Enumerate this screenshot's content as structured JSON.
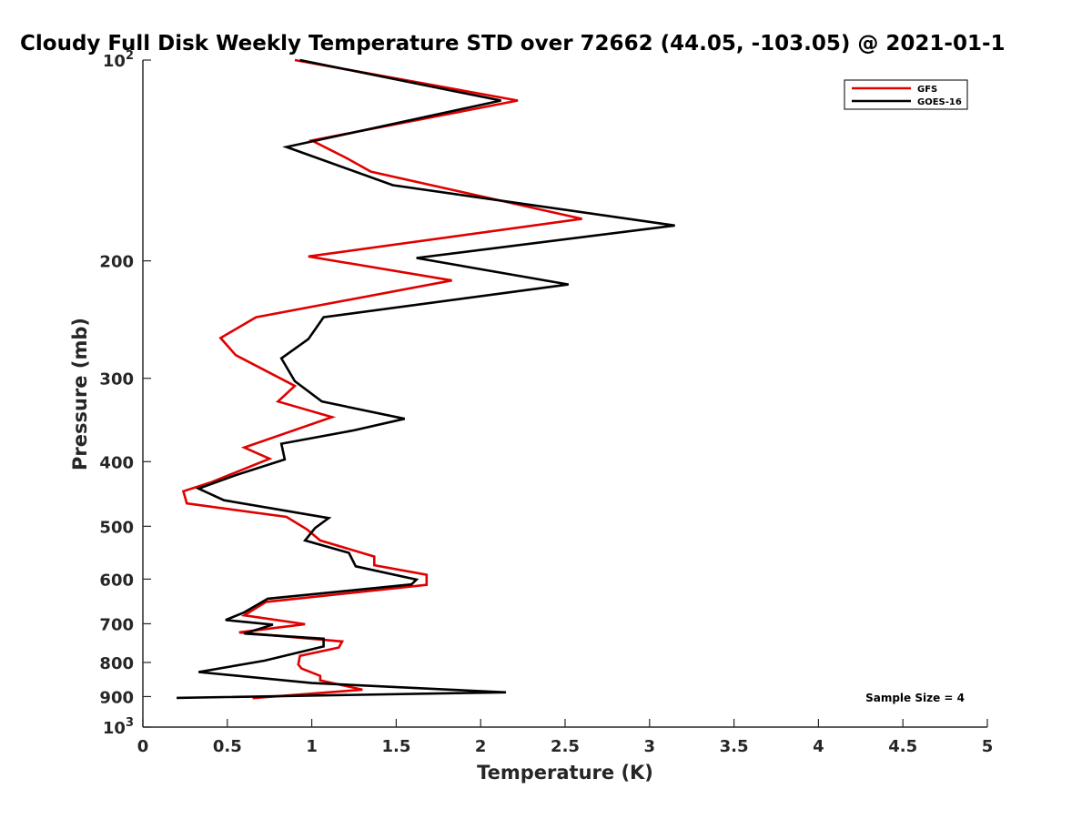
{
  "chart_data": {
    "type": "line",
    "title": "Cloudy Full Disk Weekly Temperature STD over 72662 (44.05, -103.05) @ 2021-01-1",
    "xlabel": "Temperature (K)",
    "ylabel": "Pressure (mb)",
    "xlim": [
      0,
      5
    ],
    "ylim": [
      100,
      1000
    ],
    "y_scale": "log",
    "y_reversed": true,
    "x_ticks": [
      {
        "value": 0,
        "label": "0"
      },
      {
        "value": 0.5,
        "label": "0.5"
      },
      {
        "value": 1,
        "label": "1"
      },
      {
        "value": 1.5,
        "label": "1.5"
      },
      {
        "value": 2,
        "label": "2"
      },
      {
        "value": 2.5,
        "label": "2.5"
      },
      {
        "value": 3,
        "label": "3"
      },
      {
        "value": 3.5,
        "label": "3.5"
      },
      {
        "value": 4,
        "label": "4"
      },
      {
        "value": 4.5,
        "label": "4.5"
      },
      {
        "value": 5,
        "label": "5"
      }
    ],
    "y_ticks": [
      {
        "value": 100,
        "base": "10",
        "exp": "2"
      },
      {
        "value": 200,
        "label": "200"
      },
      {
        "value": 300,
        "label": "300"
      },
      {
        "value": 400,
        "label": "400"
      },
      {
        "value": 500,
        "label": "500"
      },
      {
        "value": 600,
        "label": "600"
      },
      {
        "value": 700,
        "label": "700"
      },
      {
        "value": 800,
        "label": "800"
      },
      {
        "value": 900,
        "label": "900"
      },
      {
        "value": 1000,
        "base": "10",
        "exp": "3"
      }
    ],
    "grid": false,
    "legend_position": "top-right",
    "annotation": "Sample Size = 4",
    "series": [
      {
        "name": "GFS",
        "color": "#e00000",
        "points": [
          [
            0.9,
            100
          ],
          [
            2.22,
            115
          ],
          [
            1.0,
            132
          ],
          [
            1.2,
            140
          ],
          [
            1.35,
            147
          ],
          [
            2.6,
            173
          ],
          [
            0.98,
            197
          ],
          [
            1.83,
            214
          ],
          [
            0.67,
            243
          ],
          [
            0.46,
            261
          ],
          [
            0.55,
            277
          ],
          [
            0.9,
            308
          ],
          [
            0.8,
            325
          ],
          [
            1.12,
            343
          ],
          [
            0.6,
            381
          ],
          [
            0.75,
            396
          ],
          [
            0.4,
            430
          ],
          [
            0.24,
            443
          ],
          [
            0.26,
            462
          ],
          [
            0.85,
            484
          ],
          [
            0.97,
            505
          ],
          [
            1.05,
            525
          ],
          [
            1.37,
            555
          ],
          [
            1.37,
            572
          ],
          [
            1.68,
            591
          ],
          [
            1.68,
            612
          ],
          [
            0.73,
            649
          ],
          [
            0.6,
            680
          ],
          [
            0.96,
            701
          ],
          [
            0.57,
            721
          ],
          [
            1.18,
            744
          ],
          [
            1.16,
            760
          ],
          [
            0.93,
            782
          ],
          [
            0.92,
            806
          ],
          [
            0.94,
            817
          ],
          [
            1.05,
            838
          ],
          [
            1.05,
            851
          ],
          [
            1.3,
            879
          ],
          [
            0.65,
            905
          ]
        ]
      },
      {
        "name": "GOES-16",
        "color": "#000000",
        "points": [
          [
            0.93,
            100
          ],
          [
            2.12,
            115
          ],
          [
            0.85,
            135
          ],
          [
            1.48,
            154
          ],
          [
            3.15,
            177
          ],
          [
            1.62,
            198
          ],
          [
            2.52,
            217
          ],
          [
            1.07,
            243
          ],
          [
            0.98,
            262
          ],
          [
            0.82,
            280
          ],
          [
            0.9,
            303
          ],
          [
            1.06,
            325
          ],
          [
            1.55,
            345
          ],
          [
            1.25,
            359
          ],
          [
            0.82,
            376
          ],
          [
            0.84,
            397
          ],
          [
            0.55,
            419
          ],
          [
            0.33,
            439
          ],
          [
            0.48,
            457
          ],
          [
            1.1,
            486
          ],
          [
            1.02,
            503
          ],
          [
            0.96,
            525
          ],
          [
            1.22,
            548
          ],
          [
            1.26,
            574
          ],
          [
            1.62,
            601
          ],
          [
            1.59,
            611
          ],
          [
            0.74,
            642
          ],
          [
            0.6,
            673
          ],
          [
            0.49,
            691
          ],
          [
            0.77,
            702
          ],
          [
            0.6,
            724
          ],
          [
            1.07,
            737
          ],
          [
            1.07,
            757
          ],
          [
            0.72,
            795
          ],
          [
            0.33,
            827
          ],
          [
            1.0,
            859
          ],
          [
            2.15,
            887
          ],
          [
            0.2,
            904
          ]
        ]
      }
    ]
  }
}
